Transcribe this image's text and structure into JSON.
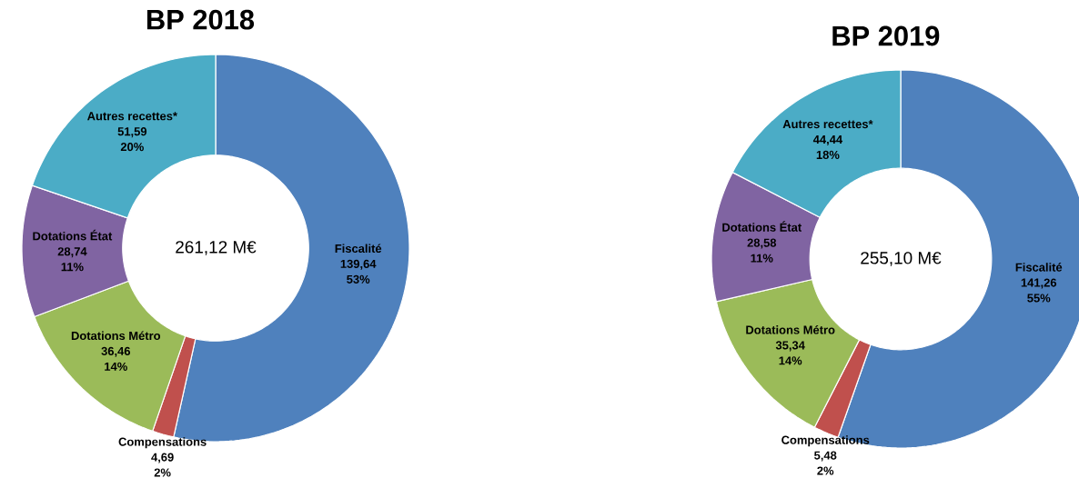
{
  "chart_data": [
    {
      "type": "donut",
      "title": "BP 2018",
      "categories": [
        "Fiscalité",
        "Compensations",
        "Dotations Métro",
        "Dotations État",
        "Autres recettes*"
      ],
      "values": [
        139.64,
        4.69,
        36.46,
        28.74,
        51.59
      ],
      "colors": [
        "#4f81bd",
        "#c0504d",
        "#9bbb59",
        "#8064a2",
        "#4bacc6"
      ],
      "value_labels": [
        "139,64",
        "4,69",
        "36,46",
        "28,74",
        "51,59"
      ],
      "annotations": [
        "261,12 M€",
        "53%",
        "2%",
        "14%",
        "11%",
        "20%"
      ]
    },
    {
      "type": "donut",
      "title": "BP 2019",
      "categories": [
        "Fiscalité",
        "Compensations",
        "Dotations Métro",
        "Dotations État",
        "Autres recettes*"
      ],
      "values": [
        141.26,
        5.48,
        35.34,
        28.58,
        44.44
      ],
      "colors": [
        "#4f81bd",
        "#c0504d",
        "#9bbb59",
        "#8064a2",
        "#4bacc6"
      ],
      "value_labels": [
        "141,26",
        "5,48",
        "35,34",
        "28,58",
        "44,44"
      ],
      "annotations": [
        "255,10 M€",
        "55%",
        "2%",
        "14%",
        "11%",
        "18%"
      ]
    }
  ]
}
